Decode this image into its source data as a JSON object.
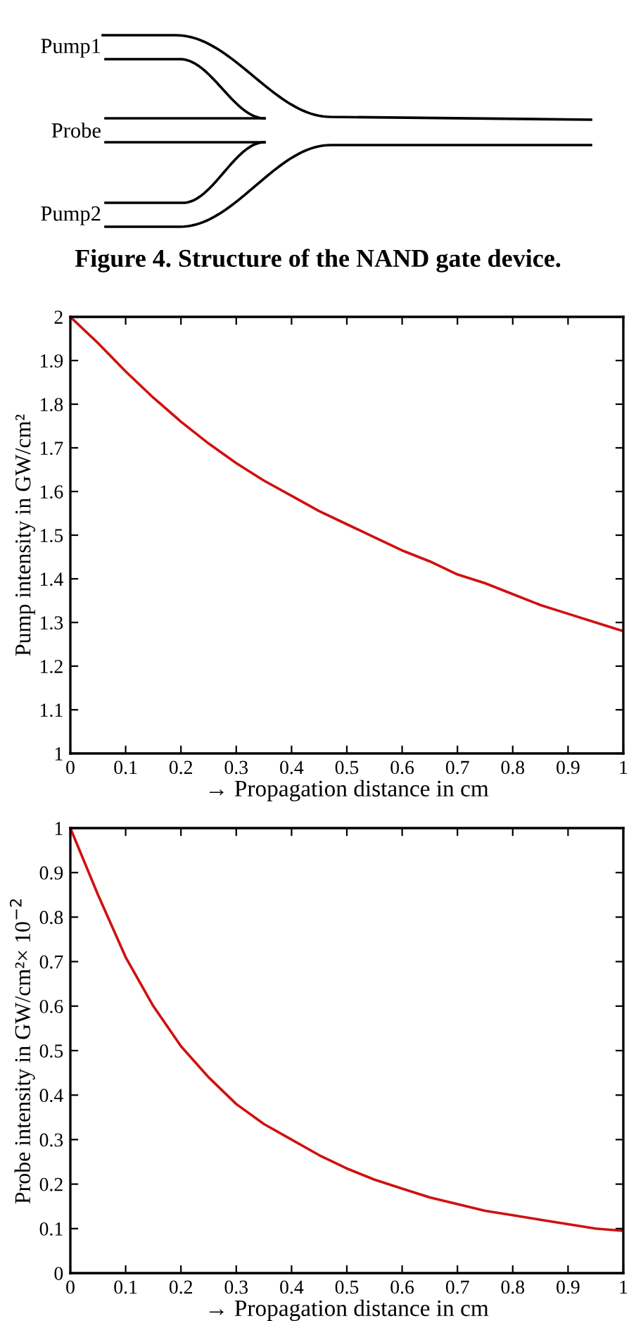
{
  "chart_data": [
    {
      "type": "other",
      "title": "Figure 4. Structure of the NAND gate device.",
      "annotations": [
        "Pump1",
        "Probe",
        "Pump2"
      ]
    },
    {
      "type": "line",
      "xlabel": "→ Propagation distance in cm",
      "ylabel": "Pump intensity in GW/cm²",
      "x": [
        0,
        0.05,
        0.1,
        0.15,
        0.2,
        0.25,
        0.3,
        0.35,
        0.4,
        0.45,
        0.5,
        0.55,
        0.6,
        0.65,
        0.7,
        0.75,
        0.8,
        0.85,
        0.9,
        0.95,
        1
      ],
      "series": [
        {
          "color": "#d01010",
          "values": [
            2.0,
            1.94,
            1.875,
            1.815,
            1.76,
            1.71,
            1.665,
            1.625,
            1.59,
            1.555,
            1.525,
            1.495,
            1.465,
            1.44,
            1.41,
            1.39,
            1.365,
            1.34,
            1.32,
            1.3,
            1.28
          ]
        }
      ],
      "xlim": [
        0,
        1
      ],
      "ylim": [
        1,
        2
      ],
      "xticks": [
        0,
        0.1,
        0.2,
        0.3,
        0.4,
        0.5,
        0.6,
        0.7,
        0.8,
        0.9,
        1
      ],
      "yticks": [
        1,
        1.1,
        1.2,
        1.3,
        1.4,
        1.5,
        1.6,
        1.7,
        1.8,
        1.9,
        2
      ]
    },
    {
      "type": "line",
      "xlabel": "→ Propagation distance in cm",
      "ylabel": "Probe intensity in GW/cm²× 10$^{−2}$",
      "x": [
        0,
        0.05,
        0.1,
        0.15,
        0.2,
        0.25,
        0.3,
        0.35,
        0.4,
        0.45,
        0.5,
        0.55,
        0.6,
        0.65,
        0.7,
        0.75,
        0.8,
        0.85,
        0.9,
        0.95,
        1
      ],
      "series": [
        {
          "color": "#d01010",
          "values": [
            1.0,
            0.85,
            0.71,
            0.6,
            0.51,
            0.44,
            0.38,
            0.335,
            0.3,
            0.265,
            0.235,
            0.21,
            0.19,
            0.17,
            0.155,
            0.14,
            0.13,
            0.12,
            0.11,
            0.1,
            0.095
          ]
        }
      ],
      "xlim": [
        0,
        1
      ],
      "ylim": [
        0,
        1
      ],
      "xticks": [
        0,
        0.1,
        0.2,
        0.3,
        0.4,
        0.5,
        0.6,
        0.7,
        0.8,
        0.9,
        1
      ],
      "yticks": [
        0,
        0.1,
        0.2,
        0.3,
        0.4,
        0.5,
        0.6,
        0.7,
        0.8,
        0.9,
        1
      ]
    }
  ]
}
